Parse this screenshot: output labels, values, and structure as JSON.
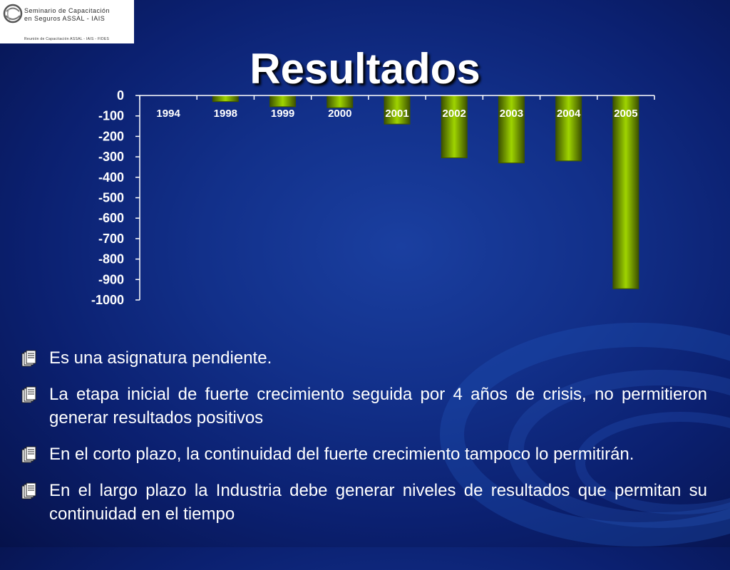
{
  "logo": {
    "line1": "Seminario de Capacitación",
    "line2": "en Seguros ASSAL - IAIS",
    "line3": "Reunión de Capacitación ASSAL - IAIS - FIDES"
  },
  "title": "Resultados",
  "chart_data": {
    "type": "bar",
    "categories": [
      "1994",
      "1998",
      "1999",
      "2000",
      "2001",
      "2002",
      "2003",
      "2004",
      "2005"
    ],
    "values": [
      0,
      -30,
      -55,
      -60,
      -140,
      -305,
      -330,
      -320,
      -945
    ],
    "ylim": [
      -1000,
      0
    ],
    "yticks": [
      0,
      -100,
      -200,
      -300,
      -400,
      -500,
      -600,
      -700,
      -800,
      -900,
      -1000
    ],
    "ytick_labels": [
      "0",
      "-100",
      "-200",
      "-300",
      "-400",
      "-500",
      "-600",
      "-700",
      "-800",
      "-900",
      "-1000"
    ],
    "title": "",
    "xlabel": "",
    "ylabel": "",
    "grid": false,
    "legend": "none",
    "bar_color": "#8bbf00",
    "bar_edge_color": "#3d5200"
  },
  "bullets": [
    "Es una asignatura pendiente.",
    "La etapa inicial de fuerte crecimiento seguida por 4 años de crisis, no permitieron generar resultados positivos",
    "En el corto plazo, la continuidad del fuerte crecimiento tampoco lo permitirán.",
    "En el largo plazo la Industria debe generar niveles de resultados que permitan su continuidad en el tiempo"
  ],
  "icons": {
    "bullet": "documents-icon",
    "logo": "globe-logo-icon"
  }
}
